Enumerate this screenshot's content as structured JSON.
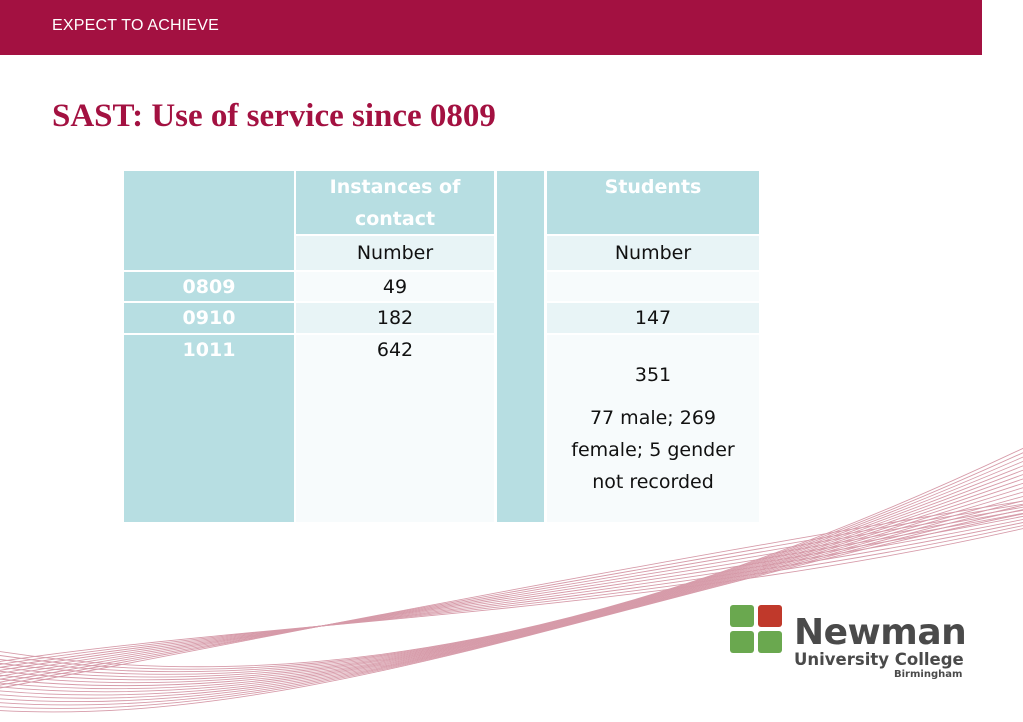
{
  "header": {
    "banner_text": "EXPECT TO ACHIEVE"
  },
  "slide": {
    "title": "SAST: Use of service since 0809"
  },
  "table": {
    "col_instances": "Instances of contact",
    "col_students": "Students",
    "sub_number_1": "Number",
    "sub_number_2": "Number",
    "rows": [
      {
        "year": "0809",
        "instances": "49",
        "students": ""
      },
      {
        "year": "0910",
        "instances": "182",
        "students": "147"
      },
      {
        "year": "1011",
        "instances": "642",
        "students": "351",
        "note": "77 male; 269 female; 5 gender not recorded"
      }
    ]
  },
  "logo": {
    "name": "Newman",
    "subtitle": "University College",
    "city": "Birmingham"
  },
  "colors": {
    "brand": "#a31141",
    "table_header": "#b7dee2",
    "logo_green": "#6aa84f",
    "logo_red": "#c0392b"
  }
}
